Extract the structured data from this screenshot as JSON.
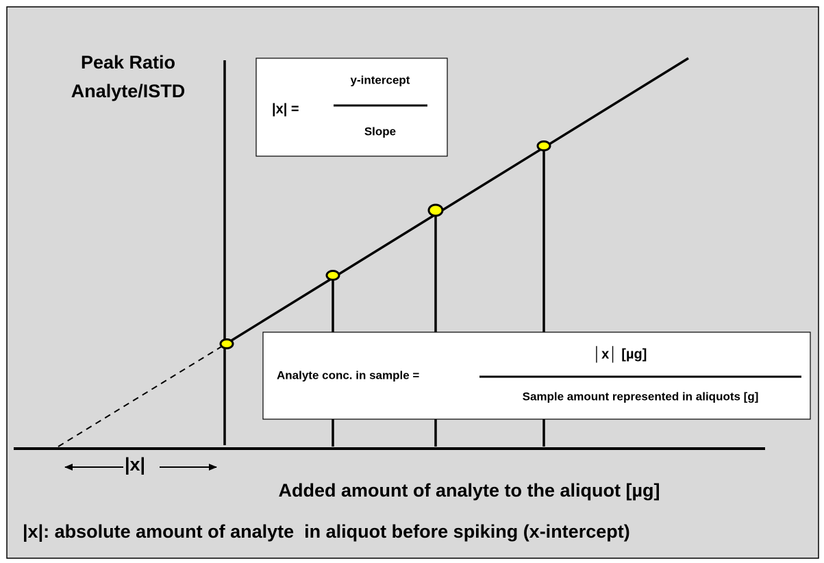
{
  "y_axis_label": [
    "Peak Ratio",
    "Analyte/ISTD"
  ],
  "formula_1": {
    "lhs": "|x| =",
    "numerator": "y-intercept",
    "denominator": "Slope"
  },
  "formula_2": {
    "lhs": "Analyte conc. in sample =",
    "numerator": "│x│ [µg]",
    "denominator": "Sample amount represented in aliquots [g]"
  },
  "x_intercept_label": "|x|",
  "x_axis_label": "Added amount of analyte to the aliquot [µg]",
  "footnote": "|x|: absolute amount of analyte  in aliquot before spiking (x-intercept)"
}
